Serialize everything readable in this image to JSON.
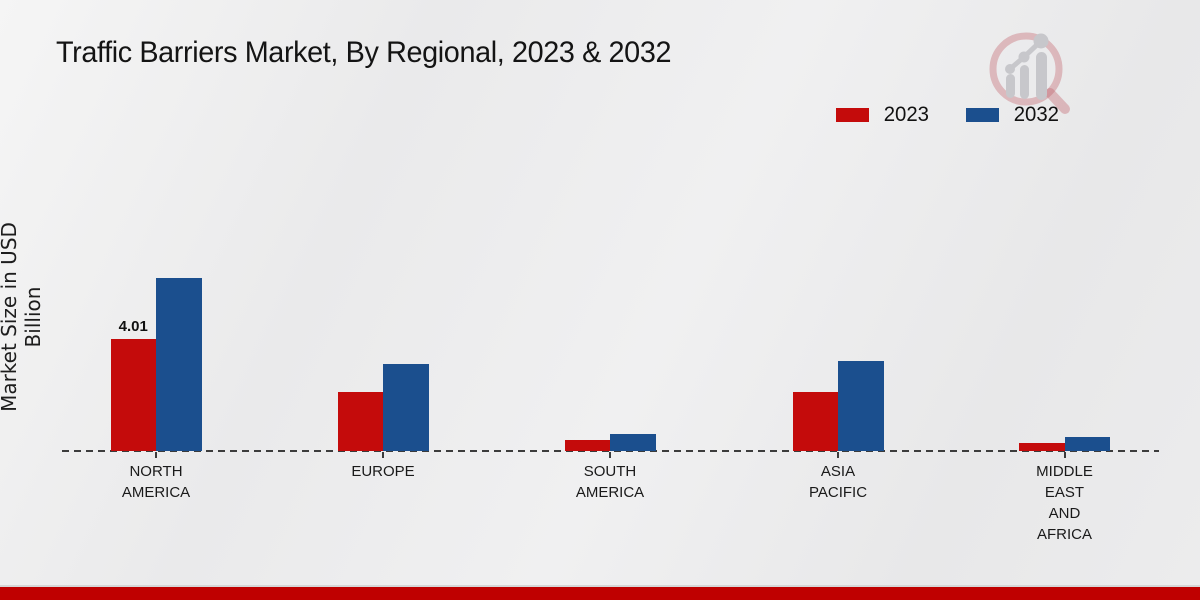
{
  "title": "Traffic Barriers Market, By Regional, 2023 & 2032",
  "y_axis_label": "Market Size in USD Billion",
  "legend": {
    "items": [
      {
        "label": "2023",
        "color": "#c40b0b"
      },
      {
        "label": "2032",
        "color": "#1b4f8e"
      }
    ]
  },
  "colors": {
    "series_2023": "#c40b0b",
    "series_2032": "#1b4f8e",
    "footer_bar": "#bf0000",
    "axis": "#3c3c3c",
    "background": "#ececed"
  },
  "logo": {
    "name": "magnifier-bar-chart-logo"
  },
  "chart_data": {
    "type": "bar",
    "title": "Traffic Barriers Market, By Regional, 2023 & 2032",
    "xlabel": "",
    "ylabel": "Market Size in USD Billion",
    "categories": [
      "NORTH AMERICA",
      "EUROPE",
      "SOUTH AMERICA",
      "ASIA PACIFIC",
      "MIDDLE EAST AND AFRICA"
    ],
    "category_label_lines": [
      "NORTH\nAMERICA",
      "EUROPE",
      "SOUTH\nAMERICA",
      "ASIA\nPACIFIC",
      "MIDDLE\nEAST\nAND\nAFRICA"
    ],
    "series": [
      {
        "name": "2023",
        "color": "#c40b0b",
        "values": [
          4.01,
          2.12,
          0.41,
          2.12,
          0.32
        ]
      },
      {
        "name": "2032",
        "color": "#1b4f8e",
        "values": [
          6.2,
          3.12,
          0.64,
          3.21,
          0.53
        ]
      }
    ],
    "data_labels": [
      {
        "series": "2023",
        "category": "NORTH AMERICA",
        "text": "4.01"
      }
    ],
    "ylim": [
      0,
      7
    ],
    "grid": false,
    "baseline_style": "dashed",
    "legend_position": "top-right"
  }
}
